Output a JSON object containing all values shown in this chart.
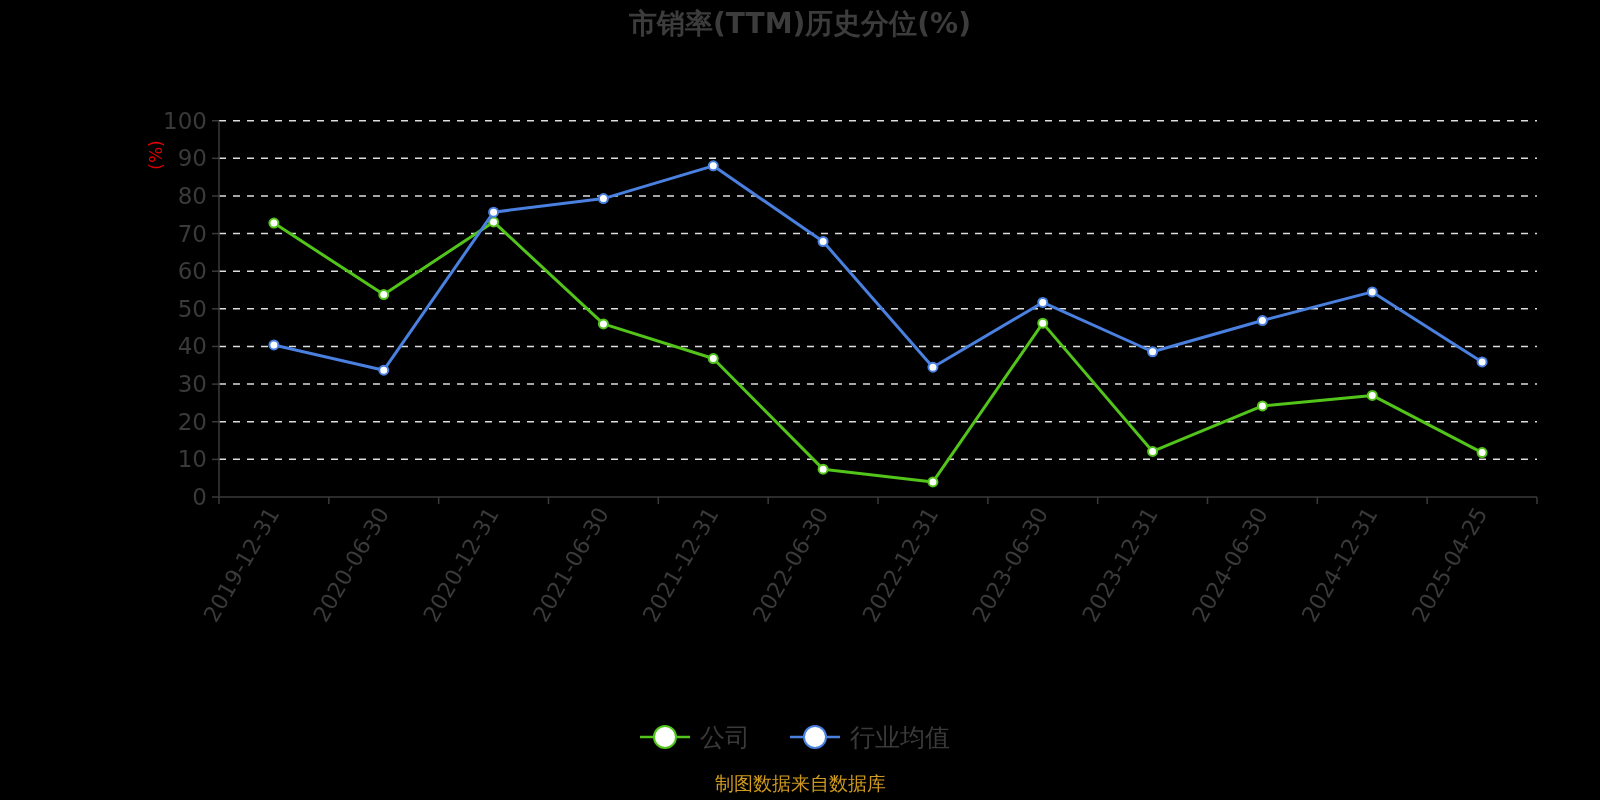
{
  "chart_data": {
    "type": "line",
    "title": "市销率(TTM)历史分位(%)",
    "ylabel": "(%)",
    "categories": [
      "2019-12-31",
      "2020-06-30",
      "2020-12-31",
      "2021-06-30",
      "2021-12-31",
      "2022-06-30",
      "2022-12-31",
      "2023-06-30",
      "2023-12-31",
      "2024-06-30",
      "2024-12-31",
      "2025-04-25"
    ],
    "series": [
      {
        "name": "公司",
        "color": "#52c41a",
        "values": [
          72.8,
          53.8,
          73.1,
          46.0,
          36.8,
          7.4,
          4.0,
          46.2,
          12.1,
          24.2,
          27.0,
          11.8
        ]
      },
      {
        "name": "行业均值",
        "color": "#4a80e0",
        "values": [
          40.4,
          33.7,
          75.7,
          79.3,
          88.0,
          67.9,
          34.5,
          51.7,
          38.6,
          46.9,
          54.5,
          35.9
        ]
      }
    ],
    "ylim": [
      0,
      100
    ],
    "yticks": [
      0,
      10,
      20,
      30,
      40,
      50,
      60,
      70,
      80,
      90,
      100
    ],
    "grid": "y",
    "legend": "bottom",
    "marker": "circle",
    "line_style": "solid",
    "annotations": [
      "制图数据来自数据库"
    ]
  }
}
